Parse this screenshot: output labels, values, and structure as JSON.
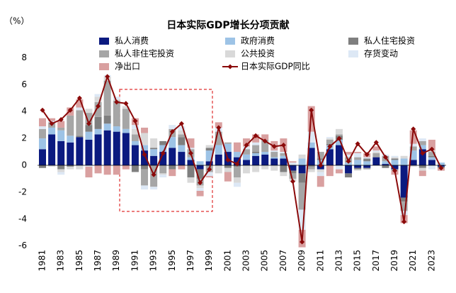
{
  "chart_data": {
    "type": "bar",
    "stacked": true,
    "title": "日本实际GDP增长分项贡献",
    "y_label": "（%）",
    "categories": [
      "1981",
      null,
      "1983",
      null,
      "1985",
      null,
      "1987",
      null,
      "1989",
      null,
      "1991",
      null,
      "1993",
      null,
      "1995",
      null,
      "1997",
      null,
      "1999",
      null,
      "2001",
      null,
      "2003",
      null,
      "2005",
      null,
      "2007",
      null,
      "2009",
      null,
      "2011",
      null,
      "2013",
      null,
      "2015",
      null,
      "2017",
      null,
      "2019",
      null,
      "2021",
      null,
      "2023",
      null
    ],
    "ylim": [
      -6,
      8
    ],
    "yticks": [
      -6,
      -4,
      -2,
      0,
      2,
      4,
      6,
      8
    ],
    "series": [
      {
        "name": "私人消费",
        "color": "#0b1a80",
        "values": [
          1.2,
          2.3,
          1.8,
          1.7,
          2.1,
          1.9,
          2.3,
          2.6,
          2.5,
          2.4,
          1.5,
          1.1,
          0.7,
          1.0,
          1.3,
          1.0,
          0.4,
          -0.3,
          0.3,
          0.8,
          1.0,
          0.6,
          0.4,
          0.7,
          0.8,
          0.5,
          0.5,
          -0.4,
          -0.6,
          1.3,
          -0.3,
          1.2,
          1.5,
          -0.6,
          -0.2,
          -0.2,
          0.6,
          0.1,
          -0.3,
          -2.4,
          0.4,
          1.2,
          0.4,
          -0.1
        ]
      },
      {
        "name": "政府消费",
        "color": "#9dc3e6",
        "values": [
          0.8,
          0.5,
          0.8,
          0.5,
          0.0,
          0.6,
          0.4,
          0.5,
          0.4,
          0.3,
          0.3,
          0.4,
          0.5,
          0.5,
          0.8,
          0.5,
          0.2,
          0.3,
          0.8,
          0.7,
          0.6,
          0.4,
          0.4,
          0.2,
          0.2,
          0.1,
          0.2,
          0.0,
          0.5,
          0.4,
          0.4,
          0.3,
          0.4,
          0.2,
          0.4,
          0.3,
          0.0,
          0.2,
          0.4,
          0.5,
          0.7,
          0.3,
          0.2,
          0.2
        ]
      },
      {
        "name": "私人住宅投资",
        "color": "#7f7f7f",
        "values": [
          -0.2,
          0.0,
          -0.3,
          -0.1,
          0.1,
          0.5,
          0.9,
          0.6,
          0.0,
          0.0,
          -0.5,
          -0.3,
          0.1,
          0.3,
          -0.3,
          0.6,
          -0.9,
          -0.7,
          0.2,
          0.0,
          -0.2,
          -0.1,
          0.0,
          0.1,
          0.0,
          0.0,
          -0.5,
          -0.2,
          -0.7,
          -0.1,
          0.1,
          0.1,
          0.3,
          -0.3,
          -0.1,
          0.2,
          0.0,
          -0.2,
          0.1,
          -0.3,
          0.0,
          -0.2,
          0.1,
          -0.1
        ]
      },
      {
        "name": "私人非住宅投资",
        "color": "#a6a6a6",
        "values": [
          0.7,
          0.4,
          0.2,
          1.5,
          1.9,
          0.9,
          1.1,
          2.6,
          1.9,
          1.5,
          0.5,
          -1.2,
          -1.6,
          -0.6,
          0.6,
          0.2,
          0.6,
          -0.5,
          -0.5,
          1.0,
          0.1,
          -0.8,
          0.4,
          0.5,
          0.9,
          0.4,
          0.2,
          -0.4,
          -2.0,
          -0.2,
          0.5,
          0.3,
          0.1,
          0.4,
          0.2,
          -0.1,
          0.3,
          0.4,
          -0.1,
          -0.7,
          0.3,
          0.3,
          0.3,
          0.0
        ]
      },
      {
        "name": "公共投资",
        "color": "#d9d9d9",
        "values": [
          0.0,
          -0.1,
          -0.2,
          -0.2,
          -0.3,
          0.3,
          0.4,
          0.3,
          0.1,
          0.2,
          0.4,
          0.9,
          0.7,
          -0.1,
          0.0,
          0.3,
          -0.4,
          -0.2,
          0.2,
          -0.6,
          -0.3,
          -0.4,
          -0.6,
          -0.5,
          -0.3,
          -0.4,
          -0.3,
          -0.2,
          0.3,
          -0.2,
          -0.2,
          0.1,
          0.4,
          0.0,
          -0.1,
          0.0,
          0.1,
          0.0,
          0.1,
          0.2,
          -0.1,
          -0.2,
          0.1,
          0.0
        ]
      },
      {
        "name": "存货变动",
        "color": "#dde8f5",
        "values": [
          0.2,
          0.1,
          -0.2,
          0.0,
          0.2,
          -0.1,
          0.2,
          0.1,
          0.2,
          0.0,
          0.3,
          -0.3,
          -0.2,
          -0.2,
          0.3,
          0.3,
          0.1,
          -0.2,
          -0.3,
          0.3,
          0.0,
          -0.3,
          0.2,
          0.2,
          0.0,
          0.1,
          0.1,
          0.2,
          -1.5,
          0.8,
          -0.3,
          0.1,
          -0.3,
          0.2,
          0.3,
          0.1,
          0.1,
          0.1,
          0.1,
          -0.3,
          0.2,
          0.2,
          -0.3,
          0.0
        ]
      },
      {
        "name": "净出口",
        "color": "#d9a0a0",
        "values": [
          0.6,
          0.2,
          0.5,
          0.6,
          0.6,
          -0.8,
          -0.6,
          -0.7,
          -0.7,
          -0.3,
          0.5,
          0.4,
          0.0,
          0.0,
          -0.5,
          -0.3,
          0.7,
          -0.4,
          -0.1,
          0.4,
          -0.7,
          0.7,
          0.6,
          0.6,
          0.4,
          0.7,
          1.0,
          0.1,
          -1.3,
          1.9,
          -0.8,
          -0.8,
          -0.3,
          0.2,
          0.1,
          0.3,
          0.3,
          0.0,
          -0.3,
          -0.6,
          1.0,
          -0.4,
          0.8,
          -0.2
        ]
      },
      {
        "name": "日本实际GDP同比",
        "type": "line",
        "color": "#8b0a0a",
        "values": [
          4.1,
          3.1,
          3.4,
          4.1,
          5.0,
          3.1,
          4.4,
          6.6,
          4.7,
          4.6,
          3.3,
          0.8,
          -0.7,
          0.9,
          2.5,
          3.1,
          0.9,
          -1.3,
          -0.3,
          2.8,
          0.4,
          0.1,
          1.5,
          2.2,
          1.8,
          1.4,
          1.5,
          -1.2,
          -5.7,
          4.1,
          0.0,
          1.4,
          2.0,
          0.3,
          1.6,
          0.8,
          1.7,
          0.6,
          -0.4,
          -4.2,
          2.7,
          0.9,
          1.2,
          -0.2
        ]
      }
    ]
  }
}
